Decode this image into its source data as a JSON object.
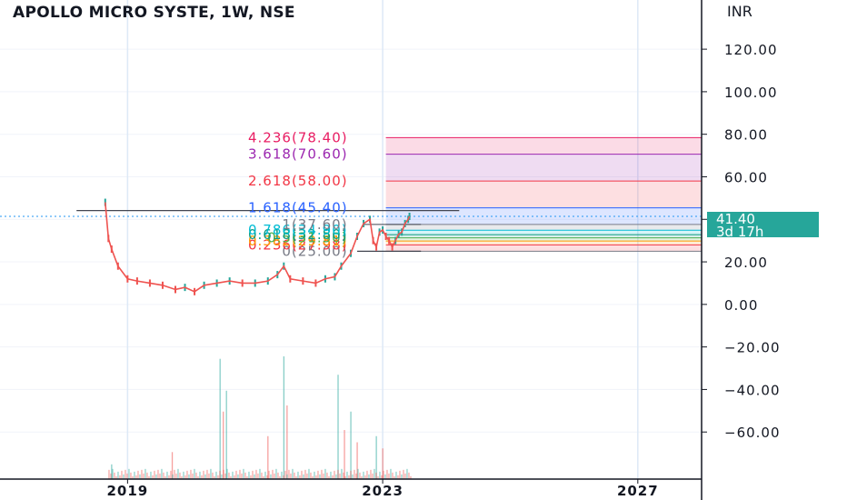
{
  "header": {
    "symbol_title": "APOLLO MICRO SYSTE, 1W, NSE",
    "currency": "INR"
  },
  "price_badge": {
    "price": "41.40",
    "countdown": "3d 17h"
  },
  "colors": {
    "up": "#26a69a",
    "down": "#ef5350",
    "axis": "#131722",
    "badge": "#26a69a",
    "crosshair": "#2196f3"
  },
  "chart_data": {
    "type": "line",
    "title": "APOLLO MICRO SYSTE, 1W, NSE",
    "y_axis": {
      "ticks": [
        "120.00",
        "100.00",
        "80.00",
        "60.00",
        "40.00",
        "20.00",
        "0.00",
        "−20.00",
        "−40.00",
        "−60.00"
      ],
      "range": [
        -80,
        138
      ]
    },
    "x_axis": {
      "ticks": [
        "2019",
        "2023",
        "2027"
      ],
      "range": [
        2017.0,
        2028.0
      ]
    },
    "current_price": 41.4,
    "series": [
      {
        "x": [
          2018.65,
          2018.7,
          2018.75,
          2018.85,
          2019.0,
          2019.15,
          2019.35,
          2019.55,
          2019.75,
          2019.9,
          2020.05,
          2020.2,
          2020.4,
          2020.6,
          2020.8,
          2021.0,
          2021.2,
          2021.35,
          2021.45,
          2021.55,
          2021.75,
          2021.95,
          2022.1,
          2022.25,
          2022.35,
          2022.5,
          2022.6,
          2022.7,
          2022.8,
          2022.85,
          2022.9,
          2022.95,
          2023.0,
          2023.05,
          2023.1,
          2023.15,
          2023.2,
          2023.25,
          2023.3,
          2023.35,
          2023.4,
          2023.42
        ],
        "values": [
          48,
          31,
          26,
          18,
          12,
          11,
          10,
          9,
          7,
          8,
          6,
          9,
          10,
          11,
          10,
          10,
          11,
          14,
          18,
          12,
          11,
          10,
          12,
          13,
          18,
          24,
          32,
          38,
          40,
          30,
          27,
          34,
          35,
          32,
          30,
          27,
          30,
          33,
          34,
          38,
          40,
          41.4
        ]
      }
    ],
    "fibonacci": {
      "start_price": 25.0,
      "end_price": 37.6,
      "levels": [
        {
          "label": "0(25.00)",
          "value": 25.0,
          "color": "#787b86"
        },
        {
          "label": "0.236(27.98)",
          "value": 27.98,
          "color": "#f23645"
        },
        {
          "label": "0.382(29.81)",
          "value": 29.81,
          "color": "#ff9800"
        },
        {
          "label": "0.5(31.30)",
          "value": 31.3,
          "color": "#4caf50"
        },
        {
          "label": "0.618(32.80)",
          "value": 32.8,
          "color": "#089981"
        },
        {
          "label": "0.786(34.90)",
          "value": 34.9,
          "color": "#00bcd4"
        },
        {
          "label": "1(37.60)",
          "value": 37.6,
          "color": "#787b86"
        },
        {
          "label": "1.618(45.40)",
          "value": 45.4,
          "color": "#2962ff"
        },
        {
          "label": "2.618(58.00)",
          "value": 58.0,
          "color": "#f23645"
        },
        {
          "label": "3.618(70.60)",
          "value": 70.6,
          "color": "#9c27b0"
        },
        {
          "label": "4.236(78.40)",
          "value": 78.4,
          "color": "#e91e63"
        }
      ]
    },
    "volume": {
      "x": [
        2018.75,
        2019.7,
        2020.45,
        2020.5,
        2020.55,
        2021.2,
        2021.45,
        2021.5,
        2022.3,
        2022.4,
        2022.5,
        2022.6,
        2022.9,
        2023.0
      ],
      "relative": [
        0.12,
        0.22,
        0.98,
        0.55,
        0.72,
        0.35,
        1.0,
        0.6,
        0.85,
        0.4,
        0.55,
        0.3,
        0.35,
        0.25
      ]
    },
    "grid": true
  }
}
